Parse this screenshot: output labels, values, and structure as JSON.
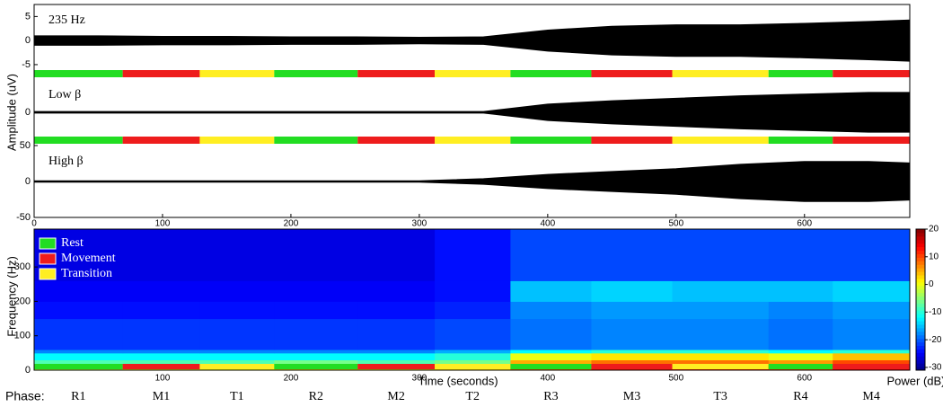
{
  "chart_data": {
    "type": "spectrogram",
    "xlim": [
      0,
      682
    ],
    "xticks": [
      0,
      100,
      200,
      300,
      400,
      500,
      600
    ],
    "xlabel": "Time (seconds)",
    "ylabel": "Amplitude (uV)",
    "legend": [
      {
        "name": "Rest",
        "color": "#22dd22"
      },
      {
        "name": "Movement",
        "color": "#ee1c1c"
      },
      {
        "name": "Transition",
        "color": "#ffee22"
      }
    ],
    "phase_title": "Phase:",
    "phases": [
      "R1",
      "M1",
      "T1",
      "R2",
      "M2",
      "T2",
      "R3",
      "M3",
      "T3",
      "R4",
      "M4"
    ],
    "phase_kinds": [
      0,
      1,
      2,
      0,
      1,
      2,
      0,
      1,
      2,
      0,
      1
    ],
    "phase_edges": [
      0,
      69,
      129,
      187,
      252,
      312,
      371,
      434,
      497,
      572,
      622,
      682
    ],
    "traces": [
      {
        "label": "235 Hz",
        "ylim": [
          -8,
          7.5
        ],
        "yticks": [
          -5,
          0,
          5
        ],
        "x": [
          0,
          50,
          100,
          150,
          200,
          250,
          300,
          350,
          400,
          450,
          500,
          550,
          600,
          650,
          682
        ],
        "envelope": [
          1,
          1,
          0.9,
          0.9,
          0.8,
          0.8,
          0.7,
          0.8,
          2.2,
          3,
          3.3,
          3.3,
          3.6,
          4,
          4.3
        ]
      },
      {
        "label": "Low β",
        "ylim": [
          -40,
          40
        ],
        "yticks": [
          0
        ],
        "x": [
          0,
          50,
          100,
          150,
          200,
          250,
          300,
          350,
          400,
          450,
          500,
          550,
          600,
          650,
          682
        ],
        "envelope": [
          1,
          1,
          1,
          1,
          1,
          1,
          1,
          1,
          10,
          14,
          17,
          20,
          22,
          24,
          24
        ]
      },
      {
        "label": "High β",
        "ylim": [
          -50,
          50
        ],
        "yticks": [
          -50,
          0,
          50
        ],
        "x": [
          0,
          50,
          100,
          150,
          200,
          250,
          300,
          350,
          400,
          450,
          500,
          550,
          600,
          650,
          682
        ],
        "envelope": [
          1,
          1,
          1,
          1,
          1,
          1,
          1,
          4,
          10,
          14,
          18,
          24,
          28,
          28,
          26
        ]
      }
    ],
    "spectrogram": {
      "ylabel": "Frequency (Hz)",
      "ylim": [
        0,
        410
      ],
      "yticks": [
        0,
        100,
        200,
        300
      ],
      "freq_edges": [
        0,
        15,
        30,
        50,
        60,
        150,
        200,
        260,
        410
      ],
      "power": [
        [
          -2,
          0,
          0,
          2,
          0,
          2,
          8,
          12,
          12,
          10,
          14
        ],
        [
          -8,
          -8,
          -8,
          -6,
          -8,
          -6,
          5,
          8,
          8,
          6,
          10
        ],
        [
          -12,
          -12,
          -12,
          -12,
          -12,
          -10,
          0,
          2,
          2,
          0,
          4
        ],
        [
          -18,
          -18,
          -18,
          -18,
          -18,
          -16,
          -12,
          -10,
          -10,
          -12,
          -10
        ],
        [
          -22,
          -22,
          -22,
          -22,
          -22,
          -21,
          -19,
          -18,
          -18,
          -19,
          -18
        ],
        [
          -24,
          -24,
          -24,
          -24,
          -24,
          -23,
          -18,
          -17,
          -17,
          -18,
          -17
        ],
        [
          -25,
          -25,
          -25,
          -25,
          -25,
          -24,
          -15,
          -14,
          -15,
          -15,
          -14
        ],
        [
          -26,
          -26,
          -26,
          -26,
          -26,
          -24,
          -21,
          -21,
          -21,
          -21,
          -21
        ]
      ],
      "clim": [
        -31,
        20
      ],
      "cticks": [
        -30,
        -20,
        -10,
        0,
        10,
        20
      ],
      "clabel": "Power (dB)"
    }
  }
}
